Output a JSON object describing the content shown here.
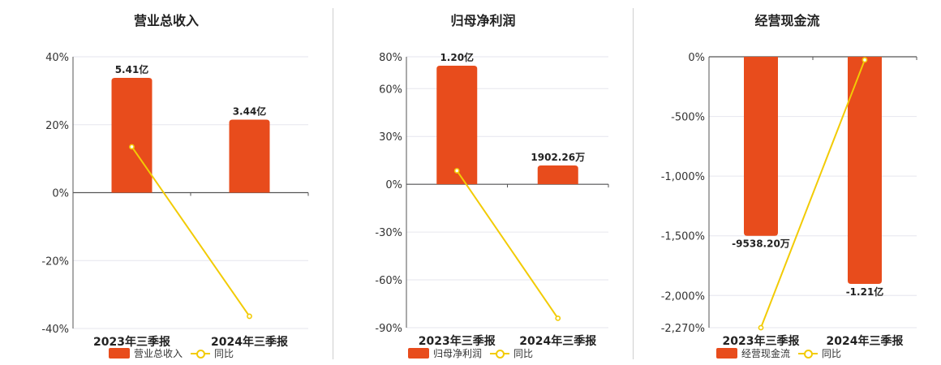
{
  "colors": {
    "bar": "#e84c1c",
    "line": "#f2cb05",
    "grid": "#e6e6ee",
    "axis": "#555555"
  },
  "panels": [
    {
      "title": "营业总收入",
      "legend": {
        "bar": "营业总收入",
        "line": "同比"
      }
    },
    {
      "title": "归母净利润",
      "legend": {
        "bar": "归母净利润",
        "line": "同比"
      }
    },
    {
      "title": "经营现金流",
      "legend": {
        "bar": "经营现金流",
        "line": "同比"
      }
    }
  ],
  "chart_data": [
    {
      "type": "bar",
      "title": "营业总收入",
      "categories": [
        "2023年三季报",
        "2024年三季报"
      ],
      "y_ticks": [
        "40%",
        "20%",
        "0%",
        "-20%",
        "-40%"
      ],
      "ylim": [
        -40,
        40
      ],
      "series": [
        {
          "name": "营业总收入",
          "type": "bar",
          "values": [
            5.41,
            3.44
          ],
          "labels": [
            "5.41亿",
            "3.44亿"
          ],
          "unit": "亿"
        },
        {
          "name": "同比",
          "type": "line",
          "values": [
            13.5,
            -36.4
          ],
          "unit": "%"
        }
      ]
    },
    {
      "type": "bar",
      "title": "归母净利润",
      "categories": [
        "2023年三季报",
        "2024年三季报"
      ],
      "y_ticks": [
        "80%",
        "60%",
        "30%",
        "0%",
        "-30%",
        "-60%",
        "-90%"
      ],
      "ylim": [
        -90,
        80
      ],
      "series": [
        {
          "name": "归母净利润",
          "type": "bar",
          "values": [
            1.2,
            0.190226
          ],
          "labels": [
            "1.20亿",
            "1902.26万"
          ],
          "unit": "亿"
        },
        {
          "name": "同比",
          "type": "line",
          "values": [
            8.5,
            -84.1
          ],
          "unit": "%"
        }
      ]
    },
    {
      "type": "bar",
      "title": "经营现金流",
      "categories": [
        "2023年三季报",
        "2024年三季报"
      ],
      "y_ticks": [
        "0%",
        "-500%",
        "-1,000%",
        "-1,500%",
        "-2,000%",
        "-2,270%"
      ],
      "ylim": [
        -2270,
        0
      ],
      "series": [
        {
          "name": "经营现金流",
          "type": "bar",
          "values": [
            -0.95382,
            -1.21
          ],
          "labels": [
            "-9538.20万",
            "-1.21亿"
          ],
          "unit": "亿"
        },
        {
          "name": "同比",
          "type": "line",
          "values": [
            -2270,
            -26
          ],
          "unit": "%"
        }
      ]
    }
  ]
}
